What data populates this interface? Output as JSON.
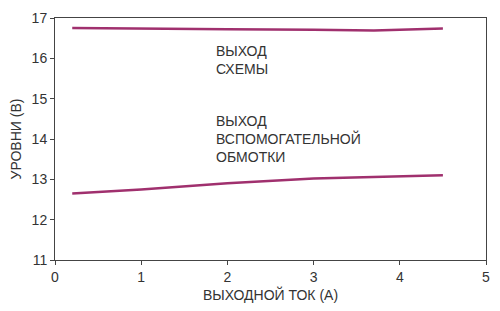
{
  "chart_data": {
    "type": "line",
    "x_label": "ВЫХОДНОЙ ТОК (А)",
    "y_label": "УРОВНИ (В)",
    "xlim": [
      0,
      5
    ],
    "xticks": [
      0,
      1,
      2,
      3,
      4,
      5
    ],
    "ylim": [
      11,
      17
    ],
    "yticks": [
      11,
      12,
      13,
      14,
      15,
      16,
      17
    ],
    "grid": false,
    "series": [
      {
        "name": "ВЫХОД СХЕМЫ",
        "color": "#a0306e",
        "x": [
          0.2,
          1,
          2,
          3,
          3.7,
          4.5
        ],
        "values": [
          16.75,
          16.73,
          16.72,
          16.71,
          16.69,
          16.74
        ]
      },
      {
        "name": "ВЫХОД ВСПОМОГАТЕЛЬНОЙ ОБМОТКИ",
        "color": "#a0306e",
        "x": [
          0.2,
          1,
          2,
          3,
          4.5
        ],
        "values": [
          12.65,
          12.75,
          12.9,
          13.02,
          13.1
        ]
      }
    ]
  }
}
